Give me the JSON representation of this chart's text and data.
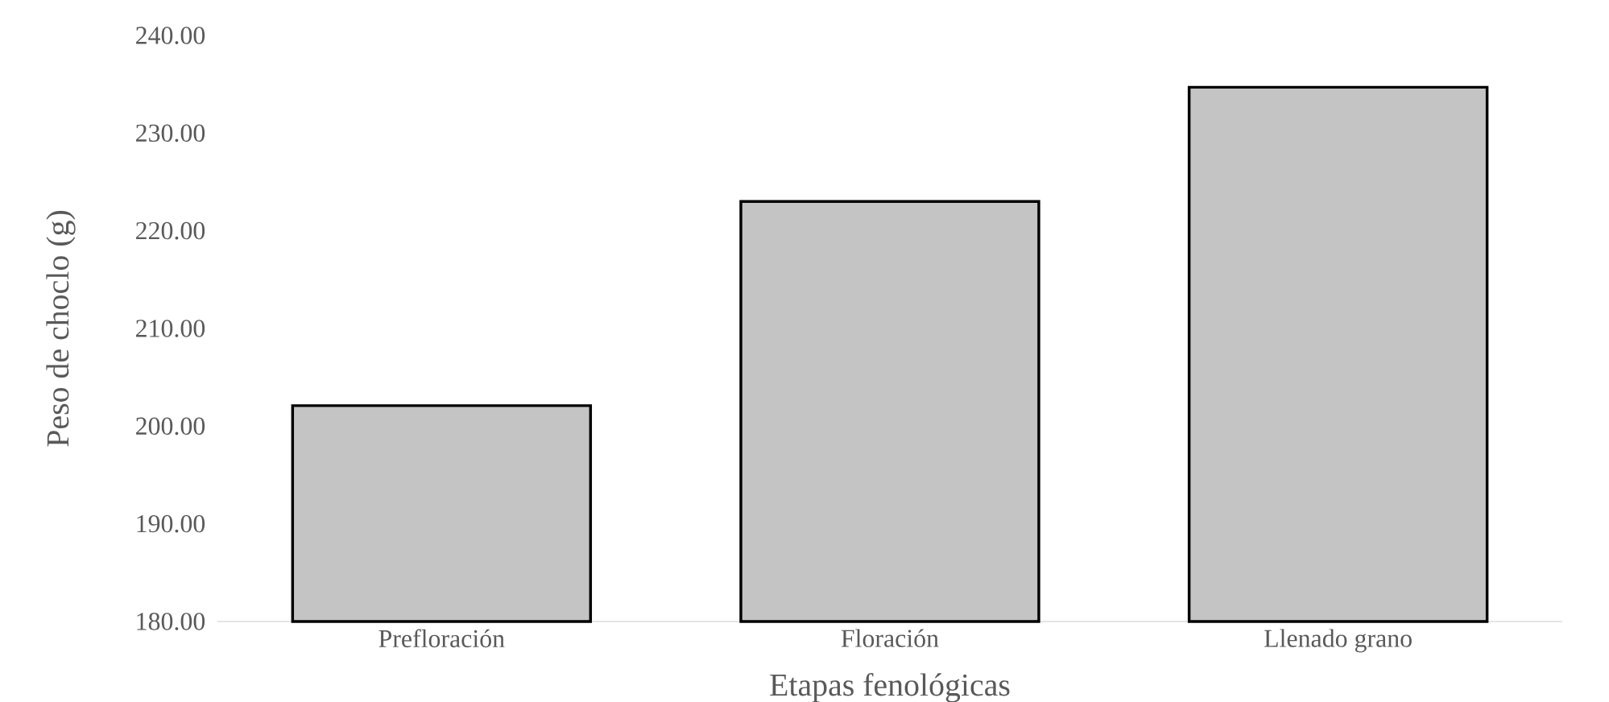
{
  "chart_data": {
    "type": "bar",
    "xlabel": "Etapas fenológicas",
    "ylabel": "Peso de choclo (g)",
    "categories": [
      "Prefloración",
      "Floración",
      "Llenado grano"
    ],
    "values": [
      202.1,
      223.0,
      234.7
    ],
    "color": "#c4c4c4",
    "ylim": [
      180,
      240
    ],
    "yticks": [
      {
        "value": 180,
        "label": "180.00"
      },
      {
        "value": 190,
        "label": "190.00"
      },
      {
        "value": 200,
        "label": "200.00"
      },
      {
        "value": 210,
        "label": "210.00"
      },
      {
        "value": 220,
        "label": "220.00"
      },
      {
        "value": 230,
        "label": "230.00"
      },
      {
        "value": 240,
        "label": "240.00"
      }
    ],
    "grid": false
  }
}
